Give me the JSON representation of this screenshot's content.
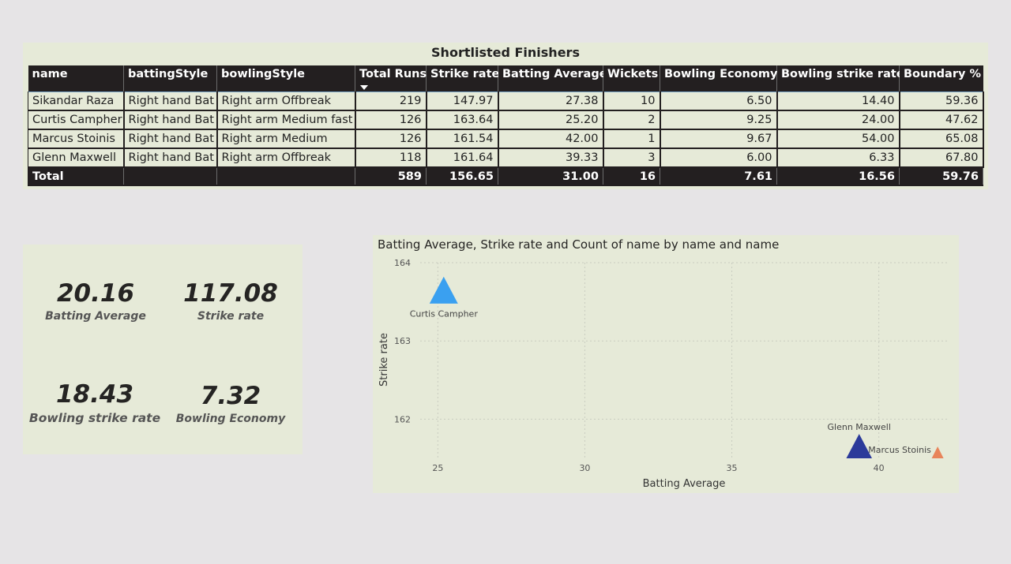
{
  "table": {
    "title": "Shortlisted Finishers",
    "headers": [
      "name",
      "battingStyle",
      "bowlingStyle",
      "Total Runs",
      "Strike rate",
      "Batting Average",
      "Wickets",
      "Bowling Economy",
      "Bowling strike rate",
      "Boundary %"
    ],
    "sorted_column": "Total Runs",
    "rows": [
      [
        "Sikandar Raza",
        "Right hand Bat",
        "Right arm Offbreak",
        "219",
        "147.97",
        "27.38",
        "10",
        "6.50",
        "14.40",
        "59.36"
      ],
      [
        "Curtis Campher",
        "Right hand Bat",
        "Right arm Medium fast",
        "126",
        "163.64",
        "25.20",
        "2",
        "9.25",
        "24.00",
        "47.62"
      ],
      [
        "Marcus Stoinis",
        "Right hand Bat",
        "Right arm Medium",
        "126",
        "161.54",
        "42.00",
        "1",
        "9.67",
        "54.00",
        "65.08"
      ],
      [
        "Glenn Maxwell",
        "Right hand Bat",
        "Right arm Offbreak",
        "118",
        "161.64",
        "39.33",
        "3",
        "6.00",
        "6.33",
        "67.80"
      ]
    ],
    "total": [
      "Total",
      "",
      "",
      "589",
      "156.65",
      "31.00",
      "16",
      "7.61",
      "16.56",
      "59.76"
    ]
  },
  "kpis": {
    "batting_average": {
      "value": "20.16",
      "label": "Batting Average"
    },
    "strike_rate": {
      "value": "117.08",
      "label": "Strike rate"
    },
    "bowling_strike_rate": {
      "value": "18.43",
      "label": "Bowling strike rate"
    },
    "bowling_economy": {
      "value": "7.32",
      "label": "Bowling Economy"
    }
  },
  "chart_data": {
    "type": "scatter",
    "title": "Batting Average, Strike rate and Count of name by name and name",
    "xlabel": "Batting Average",
    "ylabel": "Strike rate",
    "xlim": [
      24.4,
      42.4
    ],
    "ylim": [
      161.5,
      164
    ],
    "xticks": [
      25,
      30,
      35,
      40
    ],
    "yticks": [
      162,
      163,
      164
    ],
    "grid": true,
    "marker": "triangle",
    "points": [
      {
        "label": "Curtis Campher",
        "x": 25.2,
        "y": 163.64,
        "color": "#3aa0f0"
      },
      {
        "label": "Glenn Maxwell",
        "x": 39.33,
        "y": 161.64,
        "color": "#2b3a9a"
      },
      {
        "label": "Marcus Stoinis",
        "x": 42.0,
        "y": 161.54,
        "color": "#e8845a"
      }
    ]
  }
}
